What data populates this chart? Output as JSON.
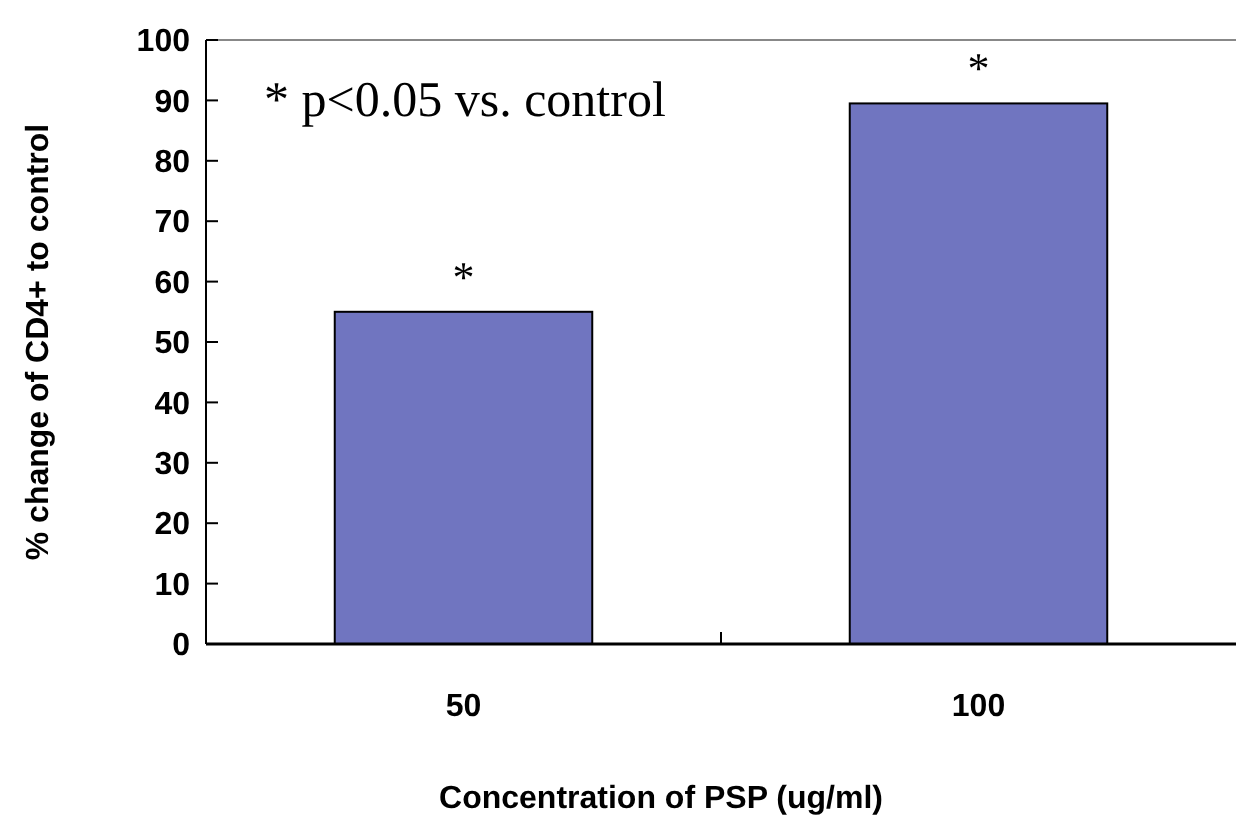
{
  "chart_data": {
    "type": "bar",
    "xlabel": "Concentration of PSP (ug/ml)",
    "ylabel": "% change of CD4+ to control",
    "categories": [
      "50",
      "100"
    ],
    "values": [
      55,
      89.5
    ],
    "color": "#7075c0",
    "ylim": [
      0,
      100
    ],
    "yticks": [
      0,
      10,
      20,
      30,
      40,
      50,
      60,
      70,
      80,
      90,
      100
    ],
    "grid": false,
    "annotations": [
      "* p<0.05 vs. control",
      {
        "text": "*",
        "x": "50",
        "y": 55
      },
      {
        "text": "*",
        "x": "100",
        "y": 89.5
      }
    ]
  }
}
